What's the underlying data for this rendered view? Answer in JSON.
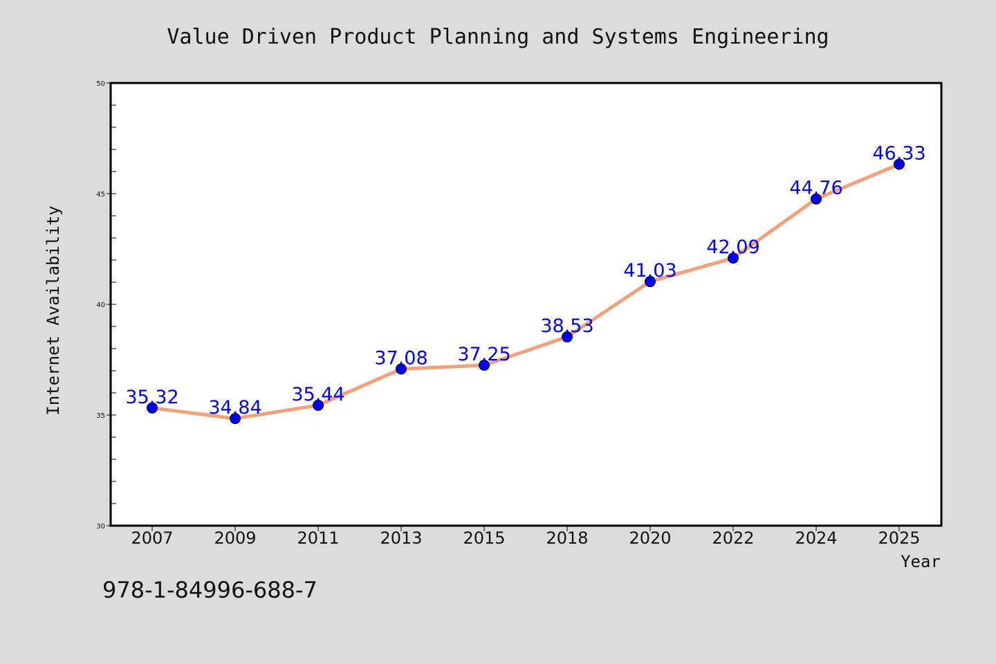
{
  "chart_data": {
    "type": "line",
    "title": "Value Driven Product Planning and Systems Engineering",
    "xlabel": "Year",
    "ylabel": "Internet Availability",
    "categories": [
      "2007",
      "2009",
      "2011",
      "2013",
      "2015",
      "2018",
      "2020",
      "2022",
      "2024",
      "2025"
    ],
    "series": [
      {
        "values": [
          35.32,
          34.84,
          35.44,
          37.08,
          37.25,
          38.53,
          41.03,
          42.09,
          44.76,
          46.33
        ],
        "data_labels": [
          "35.32",
          "34.84",
          "35.44",
          "37.08",
          "37.25",
          "38.53",
          "41.03",
          "42.09",
          "44.76",
          "46.33"
        ],
        "line_color": "#f4a07a",
        "marker_color": "#0000ee"
      }
    ],
    "ylim": [
      30,
      50
    ],
    "yticks": [
      "30",
      "35",
      "40",
      "45",
      "50"
    ],
    "grid": false,
    "legend": "none"
  },
  "footer_text": "978-1-84996-688-7",
  "colors": {
    "background": "#dcdcdc",
    "plot_background": "#ffffff",
    "frame": "#000000"
  }
}
